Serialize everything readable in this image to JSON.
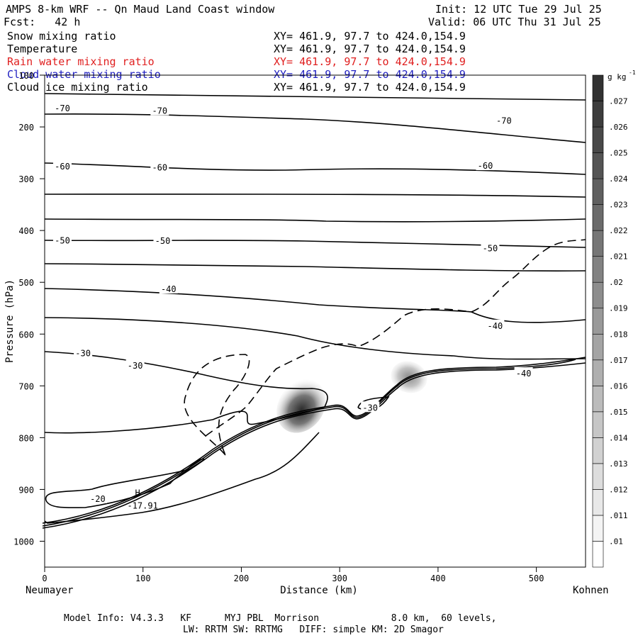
{
  "header": {
    "title": "AMPS 8-km WRF -- Qn Maud Land Coast window",
    "init": "Init: 12 UTC Tue 29 Jul 25",
    "fcst": "Fcst:   42 h",
    "valid": "Valid: 06 UTC Thu 31 Jul 25"
  },
  "fields": [
    {
      "name": "Snow mixing ratio",
      "xy": "XY= 461.9, 97.7 to 424.0,154.9",
      "color": "#000000"
    },
    {
      "name": "Temperature",
      "xy": "XY= 461.9, 97.7 to 424.0,154.9",
      "color": "#000000"
    },
    {
      "name": "Rain water mixing ratio",
      "xy": "XY= 461.9, 97.7 to 424.0,154.9",
      "color": "#e02020"
    },
    {
      "name": "Cloud water mixing ratio",
      "xy": "XY= 461.9, 97.7 to 424.0,154.9",
      "color": "#2020c0"
    },
    {
      "name": "Cloud ice mixing ratio",
      "xy": "XY= 461.9, 97.7 to 424.0,154.9",
      "color": "#000000"
    }
  ],
  "chart_data": {
    "type": "contour",
    "xlabel": "Distance (km)",
    "ylabel": "Pressure (hPa)",
    "xlim": [
      0,
      550
    ],
    "ylim": [
      1050,
      100
    ],
    "x_ticks": [
      0,
      100,
      200,
      300,
      400,
      500
    ],
    "y_ticks": [
      100,
      200,
      300,
      400,
      500,
      600,
      700,
      800,
      900,
      1000
    ],
    "x_start_label": "Neumayer",
    "x_end_label": "Kohnen",
    "colorbar": {
      "unit": "g kg",
      "unit_exp": "-1",
      "levels": [
        ".01",
        ".011",
        ".012",
        ".013",
        ".014",
        ".015",
        ".016",
        ".017",
        ".018",
        ".019",
        ".02",
        ".021",
        ".022",
        ".023",
        ".024",
        ".025",
        ".026",
        ".027"
      ]
    },
    "temperature_labels": [
      {
        "text": "-70",
        "x": 18,
        "p": 163
      },
      {
        "text": "-70",
        "x": 117,
        "p": 168
      },
      {
        "text": "-70",
        "x": 467,
        "p": 187
      },
      {
        "text": "-60",
        "x": 18,
        "p": 275
      },
      {
        "text": "-60",
        "x": 117,
        "p": 277
      },
      {
        "text": "-60",
        "x": 448,
        "p": 274
      },
      {
        "text": "-50",
        "x": 18,
        "p": 418
      },
      {
        "text": "-50",
        "x": 120,
        "p": 419
      },
      {
        "text": "-50",
        "x": 453,
        "p": 433
      },
      {
        "text": "-40",
        "x": 126,
        "p": 512
      },
      {
        "text": "-40",
        "x": 458,
        "p": 583
      },
      {
        "text": "-40",
        "x": 487,
        "p": 675
      },
      {
        "text": "-30",
        "x": 39,
        "p": 636
      },
      {
        "text": "-30",
        "x": 92,
        "p": 660
      },
      {
        "text": "-30",
        "x": 331,
        "p": 741
      },
      {
        "text": "-20",
        "x": 54,
        "p": 917
      }
    ],
    "extremum": {
      "marker": "H",
      "value": "-17.91",
      "x": 96,
      "p": 929
    }
  },
  "footer": {
    "line1": "Model Info: V4.3.3   KF      MYJ PBL  Morrison             8.0 km,  60 levels,",
    "line2": "LW: RRTM SW: RRTMG   DIFF: simple KM: 2D Smagor"
  }
}
